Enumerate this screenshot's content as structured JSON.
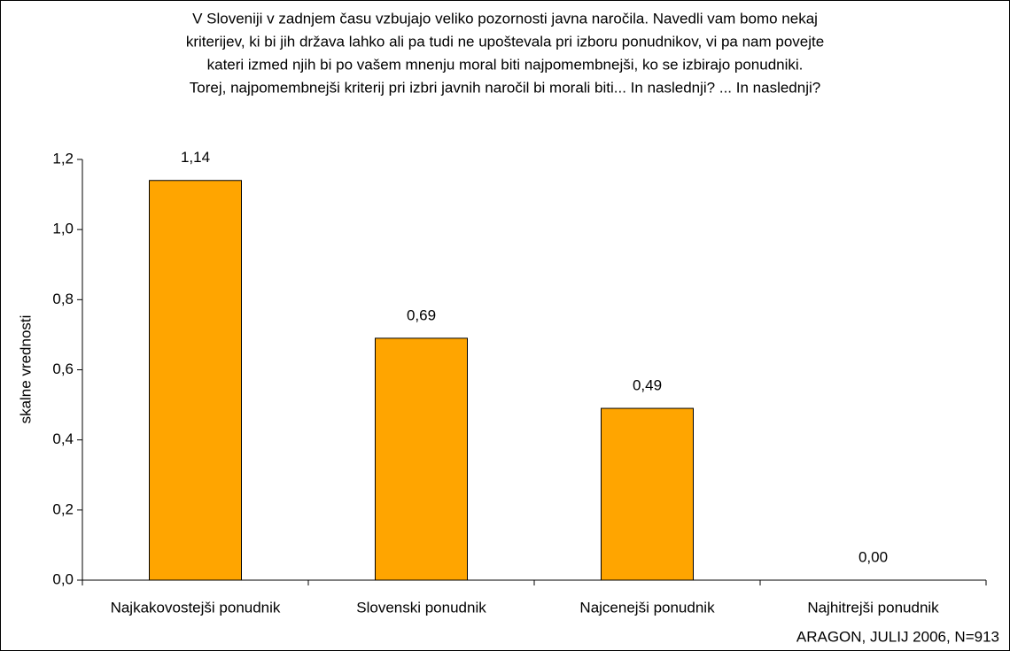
{
  "chart_data": {
    "type": "bar",
    "title": [
      "V Sloveniji v zadnjem času vzbujajo veliko pozornosti javna naročila. Navedli vam bomo nekaj",
      "kriterijev, ki bi jih država lahko ali pa tudi ne upoštevala pri izboru ponudnikov, vi pa nam povejte",
      "kateri izmed njih bi po vašem mnenju moral biti najpomembnejši, ko se izbirajo ponudniki.",
      "Torej, najpomembnejši kriterij pri izbri javnih naročil bi morali biti... In naslednji? ... In naslednji?"
    ],
    "y_label": "skalne vrednosti",
    "source": "ARAGON, JULIJ 2006, N=913",
    "categories": [
      "Najkakovostejši ponudnik",
      "Slovenski ponudnik",
      "Najcenejši ponudnik",
      "Najhitrejši ponudnik"
    ],
    "values": [
      1.14,
      0.69,
      0.49,
      0.0
    ],
    "value_labels": [
      "1,14",
      "0,69",
      "0,49",
      "0,00"
    ],
    "color": "#ffa500",
    "ylim": [
      0,
      1.2
    ],
    "yticks": [
      {
        "value": 0,
        "label": "0,0"
      },
      {
        "value": 0.2,
        "label": "0,2"
      },
      {
        "value": 0.4,
        "label": "0,4"
      },
      {
        "value": 0.6,
        "label": "0,6"
      },
      {
        "value": 0.8,
        "label": "0,8"
      },
      {
        "value": 1.0,
        "label": "1,0"
      },
      {
        "value": 1.2,
        "label": "1,2"
      }
    ],
    "grid": false
  }
}
